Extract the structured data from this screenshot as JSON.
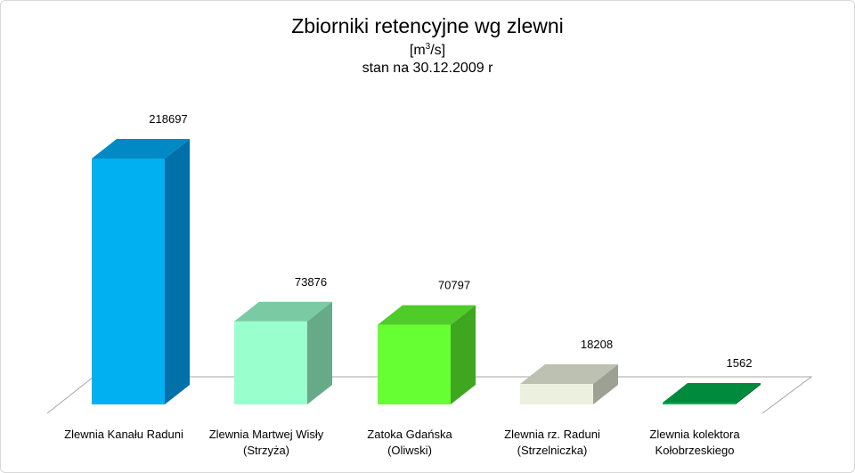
{
  "chart_data": {
    "type": "bar",
    "title": "Zbiorniki retencyjne wg zlewni",
    "unit": {
      "before": "[m",
      "sup": "3",
      "after": "/s]"
    },
    "subtitle": "stan na 30.12.2009 r",
    "categories": [
      [
        "Zlewnia Kanału Raduni"
      ],
      [
        "Zlewnia Martwej Wisły",
        "(Strzyża)"
      ],
      [
        "Zatoka Gdańska",
        "(Oliwski)"
      ],
      [
        "Zlewnia rz. Raduni",
        "(Strzelniczka)"
      ],
      [
        "Zlewnia kolektora",
        "Kołobrzeskiego"
      ]
    ],
    "values": [
      218697,
      73876,
      70797,
      18208,
      1562
    ],
    "value_labels": [
      "218697",
      "73876",
      "70797",
      "18208",
      "1562"
    ],
    "colors": [
      {
        "front": "#00b0f0",
        "top": "#0089c4",
        "side": "#0070a8"
      },
      {
        "front": "#99ffcc",
        "top": "#7acba4",
        "side": "#66aa88"
      },
      {
        "front": "#66ff33",
        "top": "#4fcc28",
        "side": "#3fa620"
      },
      {
        "front": "#ebf1de",
        "top": "#bcc1b2",
        "side": "#9da194"
      },
      {
        "front": "#00b050",
        "top": "#008a3e",
        "side": "#006e32"
      }
    ],
    "ylim": [
      0,
      218697
    ],
    "three_d": true,
    "grid": false,
    "legend": "none"
  }
}
